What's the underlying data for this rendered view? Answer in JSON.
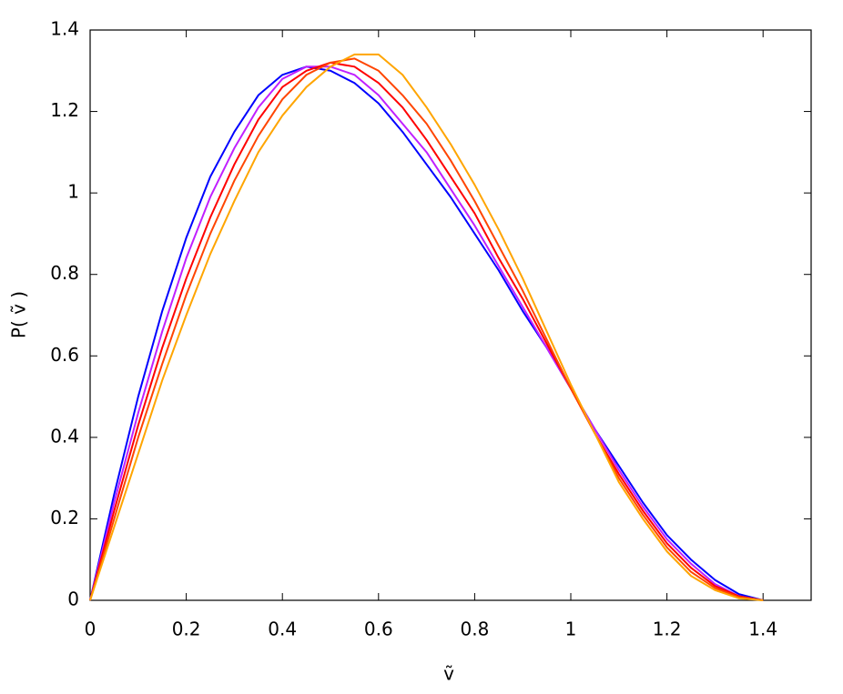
{
  "chart_data": {
    "type": "line",
    "x_label": "ṽ",
    "y_label": "P( ṽ )",
    "x": [
      0,
      0.05,
      0.1,
      0.15,
      0.2,
      0.25,
      0.3,
      0.35,
      0.4,
      0.45,
      0.5,
      0.55,
      0.6,
      0.65,
      0.7,
      0.75,
      0.8,
      0.85,
      0.9,
      0.95,
      1,
      1.05,
      1.1,
      1.15,
      1.2,
      1.25,
      1.3,
      1.35,
      1.4
    ],
    "series": [
      {
        "color": "#0000ff",
        "values": [
          0,
          0.26,
          0.5,
          0.71,
          0.89,
          1.04,
          1.15,
          1.24,
          1.29,
          1.31,
          1.3,
          1.27,
          1.22,
          1.15,
          1.07,
          0.99,
          0.9,
          0.81,
          0.71,
          0.62,
          0.52,
          0.42,
          0.33,
          0.24,
          0.16,
          0.1,
          0.05,
          0.015,
          0
        ]
      },
      {
        "color": "#c020ff",
        "values": [
          0,
          0.24,
          0.46,
          0.66,
          0.84,
          0.99,
          1.11,
          1.21,
          1.28,
          1.31,
          1.31,
          1.29,
          1.24,
          1.17,
          1.1,
          1.01,
          0.92,
          0.82,
          0.72,
          0.62,
          0.52,
          0.42,
          0.32,
          0.23,
          0.15,
          0.09,
          0.04,
          0.01,
          0
        ]
      },
      {
        "color": "#ff0000",
        "values": [
          0,
          0.22,
          0.43,
          0.62,
          0.79,
          0.94,
          1.07,
          1.18,
          1.26,
          1.3,
          1.32,
          1.31,
          1.27,
          1.21,
          1.13,
          1.04,
          0.95,
          0.84,
          0.74,
          0.63,
          0.52,
          0.41,
          0.31,
          0.22,
          0.14,
          0.08,
          0.035,
          0.01,
          0
        ]
      },
      {
        "color": "#ff4500",
        "values": [
          0,
          0.2,
          0.4,
          0.58,
          0.75,
          0.9,
          1.03,
          1.14,
          1.23,
          1.29,
          1.32,
          1.33,
          1.3,
          1.24,
          1.17,
          1.08,
          0.98,
          0.87,
          0.76,
          0.64,
          0.52,
          0.41,
          0.3,
          0.21,
          0.13,
          0.07,
          0.03,
          0.008,
          0
        ]
      },
      {
        "color": "#ffa500",
        "values": [
          0,
          0.18,
          0.36,
          0.54,
          0.7,
          0.85,
          0.98,
          1.1,
          1.19,
          1.26,
          1.31,
          1.34,
          1.34,
          1.29,
          1.21,
          1.12,
          1.02,
          0.91,
          0.79,
          0.66,
          0.53,
          0.41,
          0.29,
          0.2,
          0.12,
          0.06,
          0.025,
          0.005,
          0
        ]
      }
    ],
    "xlim": [
      0,
      1.5
    ],
    "xticks": [
      0,
      0.2,
      0.4,
      0.6,
      0.8,
      1,
      1.2,
      1.4
    ],
    "ylim": [
      0,
      1.4
    ],
    "yticks": [
      0,
      0.2,
      0.4,
      0.6,
      0.8,
      1,
      1.2,
      1.4
    ]
  }
}
